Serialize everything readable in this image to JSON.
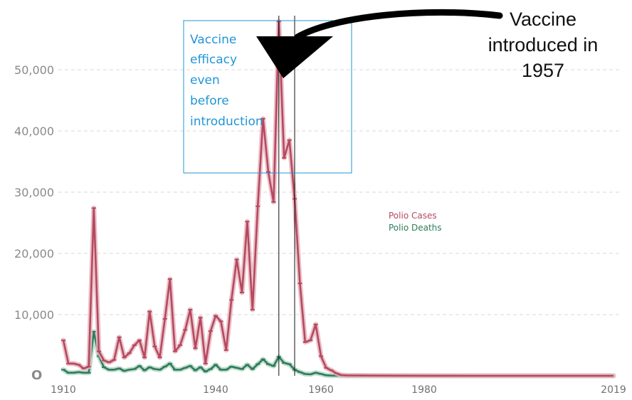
{
  "colors": {
    "cases": "#b5495f",
    "cases_glow": "#e7b7c1",
    "deaths": "#2e7d5b",
    "deaths_glow": "#b9d7c8",
    "grid": "#d9d9d9",
    "annotation_box": "#2196d6",
    "arrow": "#000000"
  },
  "chart_data": {
    "type": "line",
    "x": [
      1910,
      1911,
      1912,
      1913,
      1914,
      1915,
      1916,
      1917,
      1918,
      1919,
      1920,
      1921,
      1922,
      1923,
      1924,
      1925,
      1926,
      1927,
      1928,
      1929,
      1930,
      1931,
      1932,
      1933,
      1934,
      1935,
      1936,
      1937,
      1938,
      1939,
      1940,
      1941,
      1942,
      1943,
      1944,
      1945,
      1946,
      1947,
      1948,
      1949,
      1950,
      1951,
      1952,
      1953,
      1954,
      1955,
      1956,
      1957,
      1958,
      1959,
      1960,
      1961,
      1962,
      1963,
      1964,
      1965,
      1970,
      1980,
      1990,
      2000,
      2010,
      2019
    ],
    "series": [
      {
        "name": "Polio Cases",
        "values": [
          5800,
          2000,
          2000,
          1800,
          1200,
          1500,
          27400,
          4000,
          2500,
          2200,
          2600,
          6300,
          3000,
          3700,
          5000,
          5800,
          3000,
          10500,
          4800,
          3000,
          9300,
          15800,
          4000,
          5000,
          7500,
          10800,
          4500,
          9500,
          2000,
          7300,
          9800,
          8900,
          4200,
          12400,
          19000,
          13600,
          25200,
          10800,
          27700,
          42000,
          33300,
          28400,
          57900,
          35600,
          38500,
          28900,
          15100,
          5500,
          5800,
          8400,
          3200,
          1300,
          900,
          400,
          120,
          70,
          30,
          10,
          5,
          3,
          2,
          2
        ]
      },
      {
        "name": "Polio Deaths",
        "values": [
          1000,
          500,
          500,
          600,
          500,
          500,
          7200,
          3200,
          1400,
          1000,
          1000,
          1200,
          800,
          1000,
          1100,
          1600,
          900,
          1400,
          1100,
          1000,
          1500,
          2000,
          1000,
          1000,
          1300,
          1600,
          900,
          1400,
          700,
          1100,
          1800,
          1000,
          1000,
          1500,
          1300,
          1100,
          1800,
          1100,
          1900,
          2700,
          1900,
          1600,
          3100,
          2100,
          1900,
          1000,
          600,
          300,
          250,
          500,
          300,
          90,
          40,
          20,
          10,
          5,
          2,
          0,
          0,
          0,
          0,
          0
        ]
      }
    ],
    "ylim": [
      0,
      60000
    ],
    "yticks": [
      "10,000",
      "20,000",
      "30,000",
      "40,000",
      "50,000"
    ],
    "ytick_values": [
      10000,
      20000,
      30000,
      40000,
      50000
    ],
    "xticks": [
      "1910",
      "1940",
      "1960",
      "1980",
      "2019"
    ],
    "xtick_values": [
      1910,
      1940,
      1960,
      1980,
      2019
    ],
    "grid": true,
    "legend": [
      "Polio Cases",
      "Polio Deaths"
    ],
    "vlines": [
      1952,
      1955
    ],
    "annotations": {
      "callout_lines": [
        "Vaccine",
        "introduced in",
        "1957"
      ],
      "box_lines": [
        "Vaccine",
        "efficacy",
        "even",
        "before",
        "introduction"
      ]
    }
  }
}
